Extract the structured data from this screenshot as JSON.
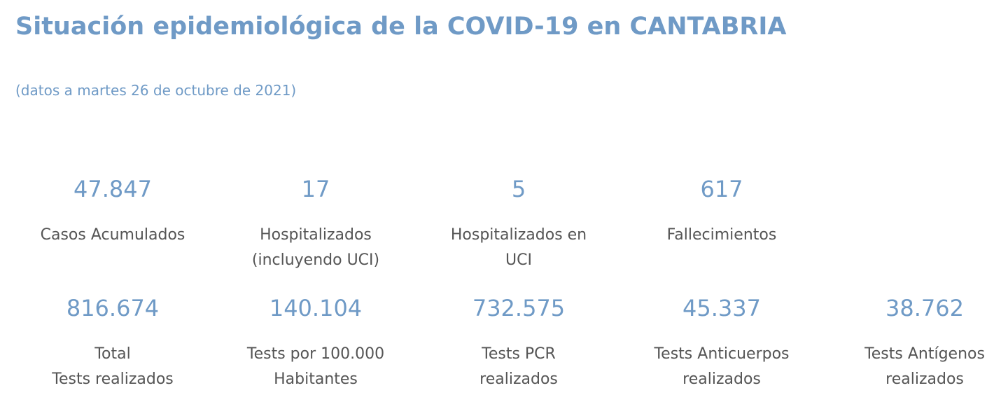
{
  "title": "Situación epidemiológica de la COVID-19 en CANTABRIA",
  "subtitle": "(datos a martes 26 de octubre de 2021)",
  "row1": [
    {
      "value": "47.847",
      "label": "Casos Acumulados"
    },
    {
      "value": "17",
      "label": "Hospitalizados\n(incluyendo UCI)"
    },
    {
      "value": "5",
      "label": "Hospitalizados en\nUCI"
    },
    {
      "value": "617",
      "label": "Fallecimientos"
    }
  ],
  "row2": [
    {
      "value": "816.674",
      "label": "Total\nTests realizados"
    },
    {
      "value": "140.104",
      "label": "Tests por 100.000\nHabitantes"
    },
    {
      "value": "732.575",
      "label": "Tests PCR\nrealizados"
    },
    {
      "value": "45.337",
      "label": "Tests Anticuerpos\nrealizados"
    },
    {
      "value": "38.762",
      "label": "Tests Antígenos\nrealizados"
    }
  ],
  "colors": {
    "accent": "#6f9ac6",
    "label": "#555555"
  }
}
